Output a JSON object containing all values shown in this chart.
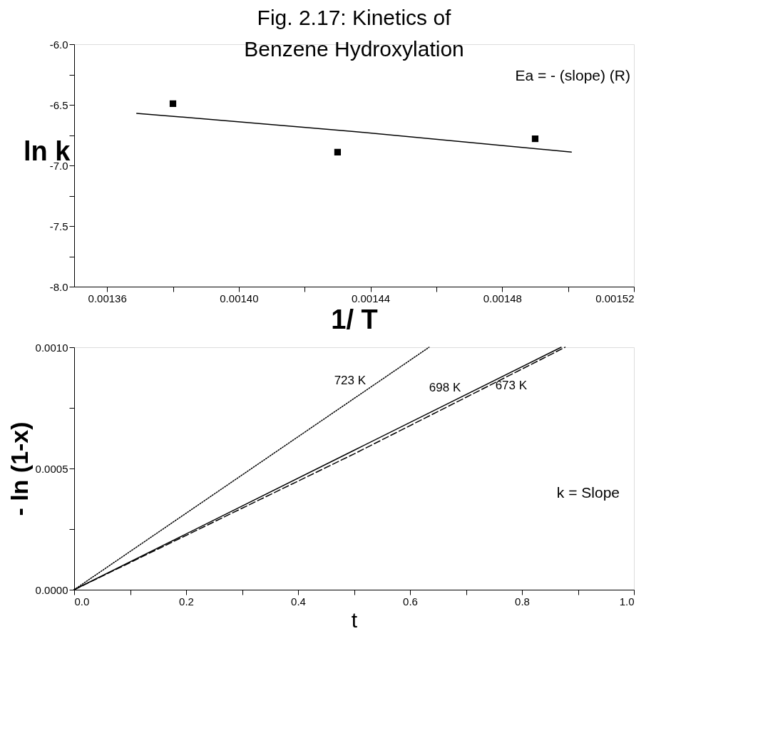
{
  "chart_data": [
    {
      "type": "scatter",
      "title": "Fig. 2.17: Kinetics of Benzene Hydroxylation",
      "xlabel": "1/ T",
      "ylabel": "ln k",
      "annotations": [
        "Ea = - (slope) (R)"
      ],
      "series": [
        {
          "marker": "square",
          "color": "#000000",
          "x": [
            0.00138,
            0.00143,
            0.00149
          ],
          "values": [
            -6.49,
            -6.89,
            -6.78
          ]
        },
        {
          "type": "line",
          "marker": "none",
          "line_style": "solid",
          "color": "#000000",
          "x": [
            0.001369,
            0.001435,
            0.001501
          ],
          "values": [
            -6.57,
            -6.72,
            -6.89
          ]
        }
      ],
      "xlim": [
        0.00135,
        0.00152
      ],
      "xticks": [
        0.00136,
        {
          "value": 0.00138,
          "label": null
        },
        {
          "value": 0.0014,
          "label": "0.00140"
        },
        {
          "value": 0.00142,
          "label": null
        },
        0.00144,
        {
          "value": 0.00146,
          "label": null
        },
        0.00148,
        {
          "value": 0.0015,
          "label": null
        },
        0.00152
      ],
      "ylim": [
        -8.0,
        -6.0
      ],
      "yticks": [
        {
          "value": -8,
          "label": "-8.0"
        },
        {
          "value": -7.75,
          "label": null
        },
        {
          "value": -7.5,
          "label": "-7.5"
        },
        {
          "value": -7.25,
          "label": null
        },
        {
          "value": -7,
          "label": "-7.0"
        },
        {
          "value": -6.75,
          "label": null
        },
        {
          "value": -6.5,
          "label": "-6.5"
        },
        {
          "value": -6.25,
          "label": null
        },
        {
          "value": -6,
          "label": "-6.0"
        }
      ],
      "grid": false,
      "legend": false
    },
    {
      "type": "line",
      "xlabel": "t",
      "ylabel": "- ln (1-x)",
      "annotations": [
        "k = Slope"
      ],
      "series": [
        {
          "name": "723 K",
          "line_style": "dotted",
          "color": "#000000",
          "x": [
            0,
            0.634
          ],
          "values": [
            0,
            0.001
          ]
        },
        {
          "name": "698 K",
          "line_style": "solid",
          "color": "#000000",
          "x": [
            0,
            0.5,
            0.87
          ],
          "values": [
            0,
            0.000575,
            0.001
          ]
        },
        {
          "name": "673 K",
          "line_style": "dashed",
          "color": "#000000",
          "x": [
            0,
            0.5,
            0.877
          ],
          "values": [
            0,
            0.00056,
            0.001
          ]
        }
      ],
      "xlim": [
        0,
        1.0
      ],
      "xticks": [
        {
          "value": 0,
          "label": "0.0"
        },
        {
          "value": 0.1,
          "label": null
        },
        {
          "value": 0.2,
          "label": "0.2"
        },
        {
          "value": 0.3,
          "label": null
        },
        {
          "value": 0.4,
          "label": "0.4"
        },
        {
          "value": 0.5,
          "label": null
        },
        {
          "value": 0.6,
          "label": "0.6"
        },
        {
          "value": 0.7,
          "label": null
        },
        {
          "value": 0.8,
          "label": "0.8"
        },
        {
          "value": 0.9,
          "label": null
        },
        {
          "value": 1.0,
          "label": "1.0"
        }
      ],
      "ylim": [
        0,
        0.001
      ],
      "yticks": [
        {
          "value": 0,
          "label": "0.0000"
        },
        {
          "value": 0.00025,
          "label": null
        },
        {
          "value": 0.0005,
          "label": "0.0005"
        },
        {
          "value": 0.00075,
          "label": null
        },
        {
          "value": 0.001,
          "label": "0.0010"
        }
      ],
      "grid": false,
      "legend": false
    }
  ]
}
